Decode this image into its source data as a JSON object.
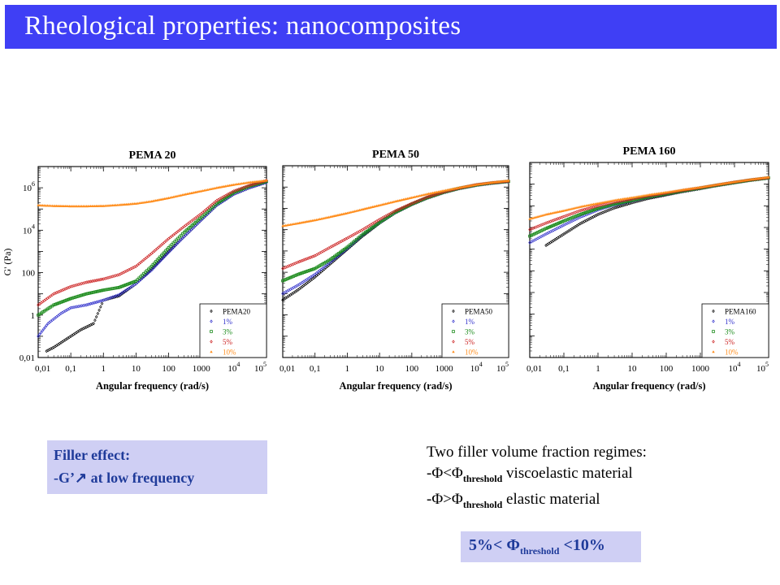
{
  "slide": {
    "title": "Rheological properties: nanocomposites"
  },
  "colors": {
    "title_bg": "#3f3ff5",
    "callout_bg": "#cfcff4",
    "callout_text": "#1f3b9a",
    "series": {
      "pure": "#000000",
      "1%": "#3333cc",
      "3%": "#1a8a1a",
      "5%": "#cc2222",
      "10%": "#ff8c1a"
    }
  },
  "chart_data": [
    {
      "type": "scatter",
      "title": "PEMA 20",
      "xlabel": "Angular frequency (rad/s)",
      "ylabel": "G' (Pa)",
      "x_scale": "log",
      "y_scale": "log",
      "xlim": [
        0.01,
        100000
      ],
      "ylim": [
        0.01,
        10000000
      ],
      "x_ticks": [
        "0,01",
        "0,1",
        "1",
        "10",
        "100",
        "1000",
        "10^4",
        "10^5"
      ],
      "y_ticks": [
        "0,01",
        "1",
        "100",
        "10^4",
        "10^6"
      ],
      "legend_position": "bottom-right",
      "series": [
        {
          "name": "PEMA20",
          "points": [
            [
              0.018,
              0.02
            ],
            [
              0.03,
              0.03
            ],
            [
              0.05,
              0.05
            ],
            [
              0.1,
              0.1
            ],
            [
              0.2,
              0.2
            ],
            [
              0.5,
              0.4
            ],
            [
              1,
              5
            ],
            [
              3,
              8
            ],
            [
              10,
              30
            ],
            [
              30,
              150
            ],
            [
              100,
              1000
            ],
            [
              300,
              5000
            ],
            [
              1000,
              30000
            ],
            [
              3000,
              150000
            ],
            [
              10000,
              500000
            ],
            [
              30000,
              1000000
            ],
            [
              100000,
              1800000
            ]
          ]
        },
        {
          "name": "1%",
          "points": [
            [
              0.01,
              0.1
            ],
            [
              0.02,
              0.4
            ],
            [
              0.05,
              1.2
            ],
            [
              0.1,
              2.2
            ],
            [
              0.3,
              3
            ],
            [
              1,
              5
            ],
            [
              3,
              9
            ],
            [
              10,
              30
            ],
            [
              30,
              130
            ],
            [
              100,
              900
            ],
            [
              300,
              5000
            ],
            [
              1000,
              30000
            ],
            [
              3000,
              150000
            ],
            [
              10000,
              500000
            ],
            [
              30000,
              1000000
            ],
            [
              100000,
              1800000
            ]
          ]
        },
        {
          "name": "3%",
          "points": [
            [
              0.01,
              1
            ],
            [
              0.03,
              3
            ],
            [
              0.1,
              6
            ],
            [
              0.3,
              10
            ],
            [
              1,
              15
            ],
            [
              3,
              20
            ],
            [
              10,
              40
            ],
            [
              30,
              200
            ],
            [
              100,
              1500
            ],
            [
              300,
              8000
            ],
            [
              1000,
              40000
            ],
            [
              3000,
              180000
            ],
            [
              10000,
              600000
            ],
            [
              30000,
              1200000
            ],
            [
              100000,
              2000000
            ]
          ]
        },
        {
          "name": "5%",
          "points": [
            [
              0.01,
              3
            ],
            [
              0.03,
              10
            ],
            [
              0.1,
              22
            ],
            [
              0.3,
              35
            ],
            [
              1,
              50
            ],
            [
              3,
              80
            ],
            [
              10,
              200
            ],
            [
              30,
              800
            ],
            [
              100,
              4000
            ],
            [
              300,
              15000
            ],
            [
              1000,
              60000
            ],
            [
              3000,
              250000
            ],
            [
              10000,
              700000
            ],
            [
              30000,
              1300000
            ],
            [
              100000,
              2200000
            ]
          ]
        },
        {
          "name": "10%",
          "points": [
            [
              0.01,
              150000
            ],
            [
              0.03,
              140000
            ],
            [
              0.1,
              135000
            ],
            [
              0.3,
              135000
            ],
            [
              1,
              140000
            ],
            [
              3,
              155000
            ],
            [
              10,
              180000
            ],
            [
              30,
              230000
            ],
            [
              100,
              330000
            ],
            [
              300,
              480000
            ],
            [
              1000,
              700000
            ],
            [
              3000,
              1000000
            ],
            [
              10000,
              1400000
            ],
            [
              30000,
              1800000
            ],
            [
              100000,
              2200000
            ]
          ]
        }
      ]
    },
    {
      "type": "scatter",
      "title": "PEMA 50",
      "xlabel": "Angular frequency (rad/s)",
      "ylabel": "",
      "x_scale": "log",
      "y_scale": "log",
      "xlim": [
        0.01,
        100000
      ],
      "ylim": [
        0.01,
        10000000
      ],
      "x_ticks": [
        "0,01",
        "0,1",
        "1",
        "10",
        "100",
        "1000",
        "10^4",
        "10^5"
      ],
      "y_ticks": [],
      "legend_position": "bottom-right",
      "series": [
        {
          "name": "PEMA50",
          "points": [
            [
              0.01,
              5
            ],
            [
              0.03,
              15
            ],
            [
              0.1,
              60
            ],
            [
              0.3,
              250
            ],
            [
              1,
              1200
            ],
            [
              3,
              5000
            ],
            [
              10,
              20000
            ],
            [
              30,
              60000
            ],
            [
              100,
              150000
            ],
            [
              300,
              300000
            ],
            [
              1000,
              550000
            ],
            [
              3000,
              850000
            ],
            [
              10000,
              1200000
            ],
            [
              30000,
              1500000
            ],
            [
              100000,
              1800000
            ]
          ]
        },
        {
          "name": "1%",
          "points": [
            [
              0.01,
              10
            ],
            [
              0.03,
              25
            ],
            [
              0.1,
              80
            ],
            [
              0.3,
              300
            ],
            [
              1,
              1300
            ],
            [
              3,
              5500
            ],
            [
              10,
              21000
            ],
            [
              30,
              62000
            ],
            [
              100,
              155000
            ],
            [
              300,
              310000
            ],
            [
              1000,
              560000
            ],
            [
              3000,
              860000
            ],
            [
              10000,
              1200000
            ],
            [
              30000,
              1500000
            ],
            [
              100000,
              1800000
            ]
          ]
        },
        {
          "name": "3%",
          "points": [
            [
              0.01,
              40
            ],
            [
              0.03,
              80
            ],
            [
              0.1,
              150
            ],
            [
              0.3,
              400
            ],
            [
              1,
              1500
            ],
            [
              3,
              6000
            ],
            [
              10,
              22000
            ],
            [
              30,
              65000
            ],
            [
              100,
              160000
            ],
            [
              300,
              320000
            ],
            [
              1000,
              580000
            ],
            [
              3000,
              880000
            ],
            [
              10000,
              1250000
            ],
            [
              30000,
              1550000
            ],
            [
              100000,
              1850000
            ]
          ]
        },
        {
          "name": "5%",
          "points": [
            [
              0.01,
              150
            ],
            [
              0.03,
              300
            ],
            [
              0.1,
              600
            ],
            [
              0.3,
              1500
            ],
            [
              1,
              4000
            ],
            [
              3,
              10000
            ],
            [
              10,
              30000
            ],
            [
              30,
              75000
            ],
            [
              100,
              170000
            ],
            [
              300,
              340000
            ],
            [
              1000,
              600000
            ],
            [
              3000,
              900000
            ],
            [
              10000,
              1300000
            ],
            [
              30000,
              1600000
            ],
            [
              100000,
              1900000
            ]
          ]
        },
        {
          "name": "10%",
          "points": [
            [
              0.01,
              15000
            ],
            [
              0.03,
              20000
            ],
            [
              0.1,
              28000
            ],
            [
              0.3,
              40000
            ],
            [
              1,
              60000
            ],
            [
              3,
              90000
            ],
            [
              10,
              140000
            ],
            [
              30,
              210000
            ],
            [
              100,
              320000
            ],
            [
              300,
              470000
            ],
            [
              1000,
              680000
            ],
            [
              3000,
              950000
            ],
            [
              10000,
              1300000
            ],
            [
              30000,
              1650000
            ],
            [
              100000,
              2000000
            ]
          ]
        }
      ]
    },
    {
      "type": "scatter",
      "title": "PEMA 160",
      "xlabel": "Angular frequency (rad/s)",
      "ylabel": "",
      "x_scale": "log",
      "y_scale": "log",
      "xlim": [
        0.01,
        100000
      ],
      "ylim": [
        0.01,
        10000000
      ],
      "x_ticks": [
        "0,01",
        "0,1",
        "1",
        "10",
        "100",
        "1000",
        "10^4",
        "10^5"
      ],
      "y_ticks": [],
      "legend_position": "bottom-right",
      "series": [
        {
          "name": "PEMA160",
          "points": [
            [
              0.03,
              1500
            ],
            [
              0.1,
              5000
            ],
            [
              0.3,
              15000
            ],
            [
              1,
              40000
            ],
            [
              3,
              80000
            ],
            [
              10,
              140000
            ],
            [
              30,
              220000
            ],
            [
              100,
              320000
            ],
            [
              300,
              450000
            ],
            [
              1000,
              620000
            ],
            [
              3000,
              850000
            ],
            [
              10000,
              1150000
            ],
            [
              30000,
              1500000
            ],
            [
              100000,
              1900000
            ]
          ]
        },
        {
          "name": "1%",
          "points": [
            [
              0.01,
              2000
            ],
            [
              0.03,
              5000
            ],
            [
              0.1,
              13000
            ],
            [
              0.3,
              30000
            ],
            [
              1,
              65000
            ],
            [
              3,
              110000
            ],
            [
              10,
              170000
            ],
            [
              30,
              250000
            ],
            [
              100,
              350000
            ],
            [
              300,
              480000
            ],
            [
              1000,
              650000
            ],
            [
              3000,
              880000
            ],
            [
              10000,
              1200000
            ],
            [
              30000,
              1550000
            ],
            [
              100000,
              1950000
            ]
          ]
        },
        {
          "name": "3%",
          "points": [
            [
              0.01,
              4000
            ],
            [
              0.03,
              9000
            ],
            [
              0.1,
              20000
            ],
            [
              0.3,
              40000
            ],
            [
              1,
              75000
            ],
            [
              3,
              120000
            ],
            [
              10,
              180000
            ],
            [
              30,
              260000
            ],
            [
              100,
              360000
            ],
            [
              300,
              490000
            ],
            [
              1000,
              660000
            ],
            [
              3000,
              890000
            ],
            [
              10000,
              1200000
            ],
            [
              30000,
              1550000
            ],
            [
              100000,
              1950000
            ]
          ]
        },
        {
          "name": "5%",
          "points": [
            [
              0.01,
              8000
            ],
            [
              0.03,
              16000
            ],
            [
              0.1,
              32000
            ],
            [
              0.3,
              60000
            ],
            [
              1,
              100000
            ],
            [
              3,
              150000
            ],
            [
              10,
              210000
            ],
            [
              30,
              290000
            ],
            [
              100,
              390000
            ],
            [
              300,
              520000
            ],
            [
              1000,
              690000
            ],
            [
              3000,
              920000
            ],
            [
              10000,
              1250000
            ],
            [
              30000,
              1600000
            ],
            [
              100000,
              2000000
            ]
          ]
        },
        {
          "name": "10%",
          "points": [
            [
              0.01,
              25000
            ],
            [
              0.03,
              40000
            ],
            [
              0.1,
              60000
            ],
            [
              0.3,
              90000
            ],
            [
              1,
              130000
            ],
            [
              3,
              180000
            ],
            [
              10,
              240000
            ],
            [
              30,
              320000
            ],
            [
              100,
              420000
            ],
            [
              300,
              550000
            ],
            [
              1000,
              720000
            ],
            [
              3000,
              950000
            ],
            [
              10000,
              1280000
            ],
            [
              30000,
              1650000
            ],
            [
              100000,
              2100000
            ]
          ]
        }
      ]
    }
  ],
  "callouts": {
    "filler_effect": {
      "line1": "Filler effect:",
      "line2": "-G’↗ at low frequency"
    },
    "regimes": {
      "heading": "Two filler volume fraction regimes:",
      "rows": [
        {
          "prefix": "-Φ<Φ",
          "sub": "threshold",
          "suffix": " viscoelastic material"
        },
        {
          "prefix": "-Φ>Φ",
          "sub": "threshold",
          "suffix": " elastic material"
        }
      ]
    },
    "threshold": {
      "prefix": "5%< Φ",
      "sub": "threshold",
      "suffix": " <10%"
    }
  }
}
